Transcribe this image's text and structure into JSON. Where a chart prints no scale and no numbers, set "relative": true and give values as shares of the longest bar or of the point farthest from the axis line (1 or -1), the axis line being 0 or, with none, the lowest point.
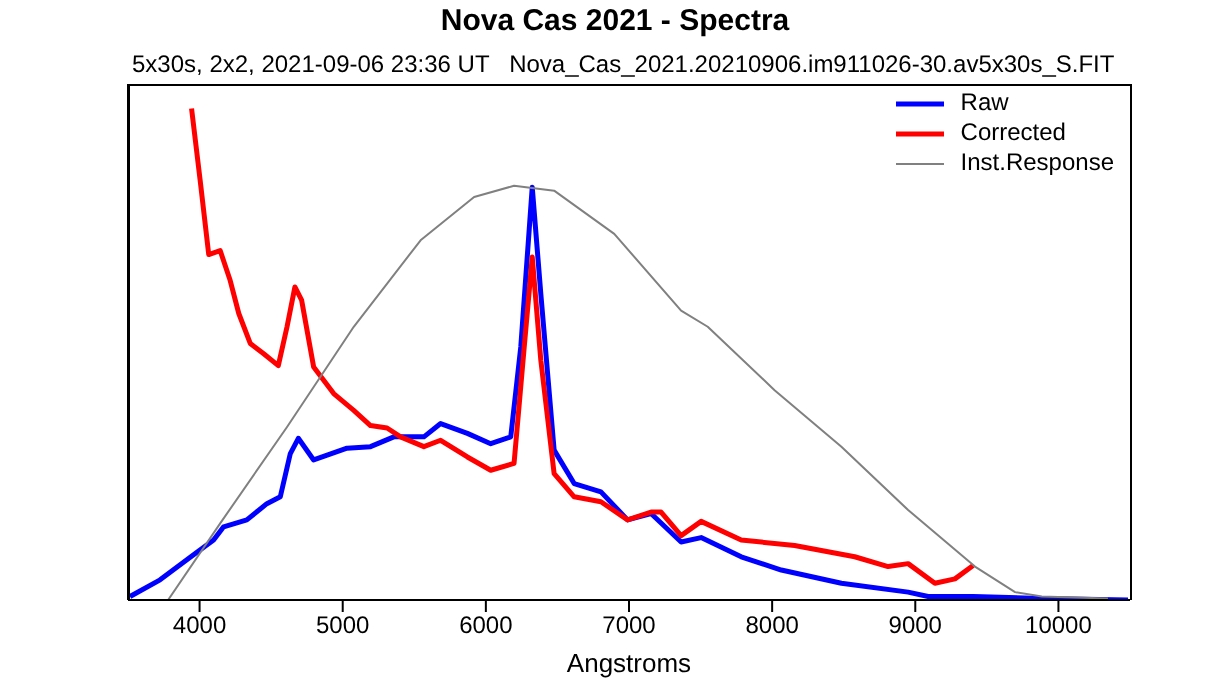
{
  "chart_data": {
    "type": "line",
    "title": "Nova Cas 2021 - Spectra",
    "subtitle": "5x30s, 2x2, 2021-09-06 23:36 UT   Nova_Cas_2021.20210906.im911026-30.av5x30s_S.FIT",
    "xlabel": "Angstroms",
    "relative": true,
    "xlim": [
      3500,
      10500
    ],
    "xticks": [
      4000,
      5000,
      6000,
      7000,
      8000,
      9000,
      10000
    ],
    "legend": "top right",
    "grid": false,
    "marker": "none",
    "line_style": "solid",
    "series": [
      {
        "name": "Raw",
        "color": "#0000ff",
        "x": [
          3514,
          3724,
          3958,
          4098,
          4168,
          4330,
          4470,
          4564,
          4634,
          4690,
          4797,
          5030,
          5194,
          5357,
          5567,
          5684,
          5871,
          6034,
          6174,
          6244,
          6324,
          6384,
          6477,
          6617,
          6804,
          6990,
          7154,
          7364,
          7504,
          7784,
          8064,
          8484,
          8950,
          9090,
          9404,
          9884,
          10486
        ],
        "values": [
          0.007,
          0.041,
          0.092,
          0.122,
          0.149,
          0.163,
          0.196,
          0.21,
          0.298,
          0.329,
          0.285,
          0.309,
          0.312,
          0.332,
          0.332,
          0.359,
          0.339,
          0.318,
          0.332,
          0.515,
          0.84,
          0.623,
          0.305,
          0.237,
          0.22,
          0.163,
          0.176,
          0.118,
          0.127,
          0.088,
          0.061,
          0.034,
          0.016,
          0.007,
          0.007,
          0.003,
          0
        ]
      },
      {
        "name": "Corrected",
        "color": "#ff0000",
        "x": [
          3944,
          4004,
          4064,
          4144,
          4214,
          4274,
          4354,
          4448,
          4550,
          4611,
          4666,
          4713,
          4797,
          4937,
          5077,
          5194,
          5310,
          5404,
          5567,
          5684,
          5871,
          6034,
          6197,
          6268,
          6324,
          6384,
          6477,
          6617,
          6804,
          6990,
          7154,
          7224,
          7364,
          7504,
          7784,
          8157,
          8577,
          8810,
          8950,
          9137,
          9277,
          9404
        ],
        "values": [
          1,
          0.854,
          0.703,
          0.711,
          0.65,
          0.583,
          0.522,
          0.501,
          0.477,
          0.556,
          0.637,
          0.61,
          0.474,
          0.42,
          0.386,
          0.355,
          0.35,
          0.332,
          0.312,
          0.325,
          0.291,
          0.264,
          0.278,
          0.515,
          0.698,
          0.488,
          0.257,
          0.21,
          0.2,
          0.163,
          0.179,
          0.179,
          0.131,
          0.16,
          0.122,
          0.111,
          0.088,
          0.068,
          0.074,
          0.034,
          0.043,
          0.07
        ]
      },
      {
        "name": "Inst.Response",
        "color": "#808080",
        "x": [
          3780,
          4144,
          4611,
          5077,
          5544,
          5918,
          6197,
          6477,
          6897,
          7364,
          7550,
          8017,
          8484,
          8950,
          9417,
          9697,
          9884,
          10346
        ],
        "values": [
          0,
          0.156,
          0.352,
          0.556,
          0.732,
          0.82,
          0.843,
          0.833,
          0.745,
          0.589,
          0.556,
          0.427,
          0.312,
          0.183,
          0.068,
          0.016,
          0.007,
          0.003
        ]
      }
    ]
  }
}
